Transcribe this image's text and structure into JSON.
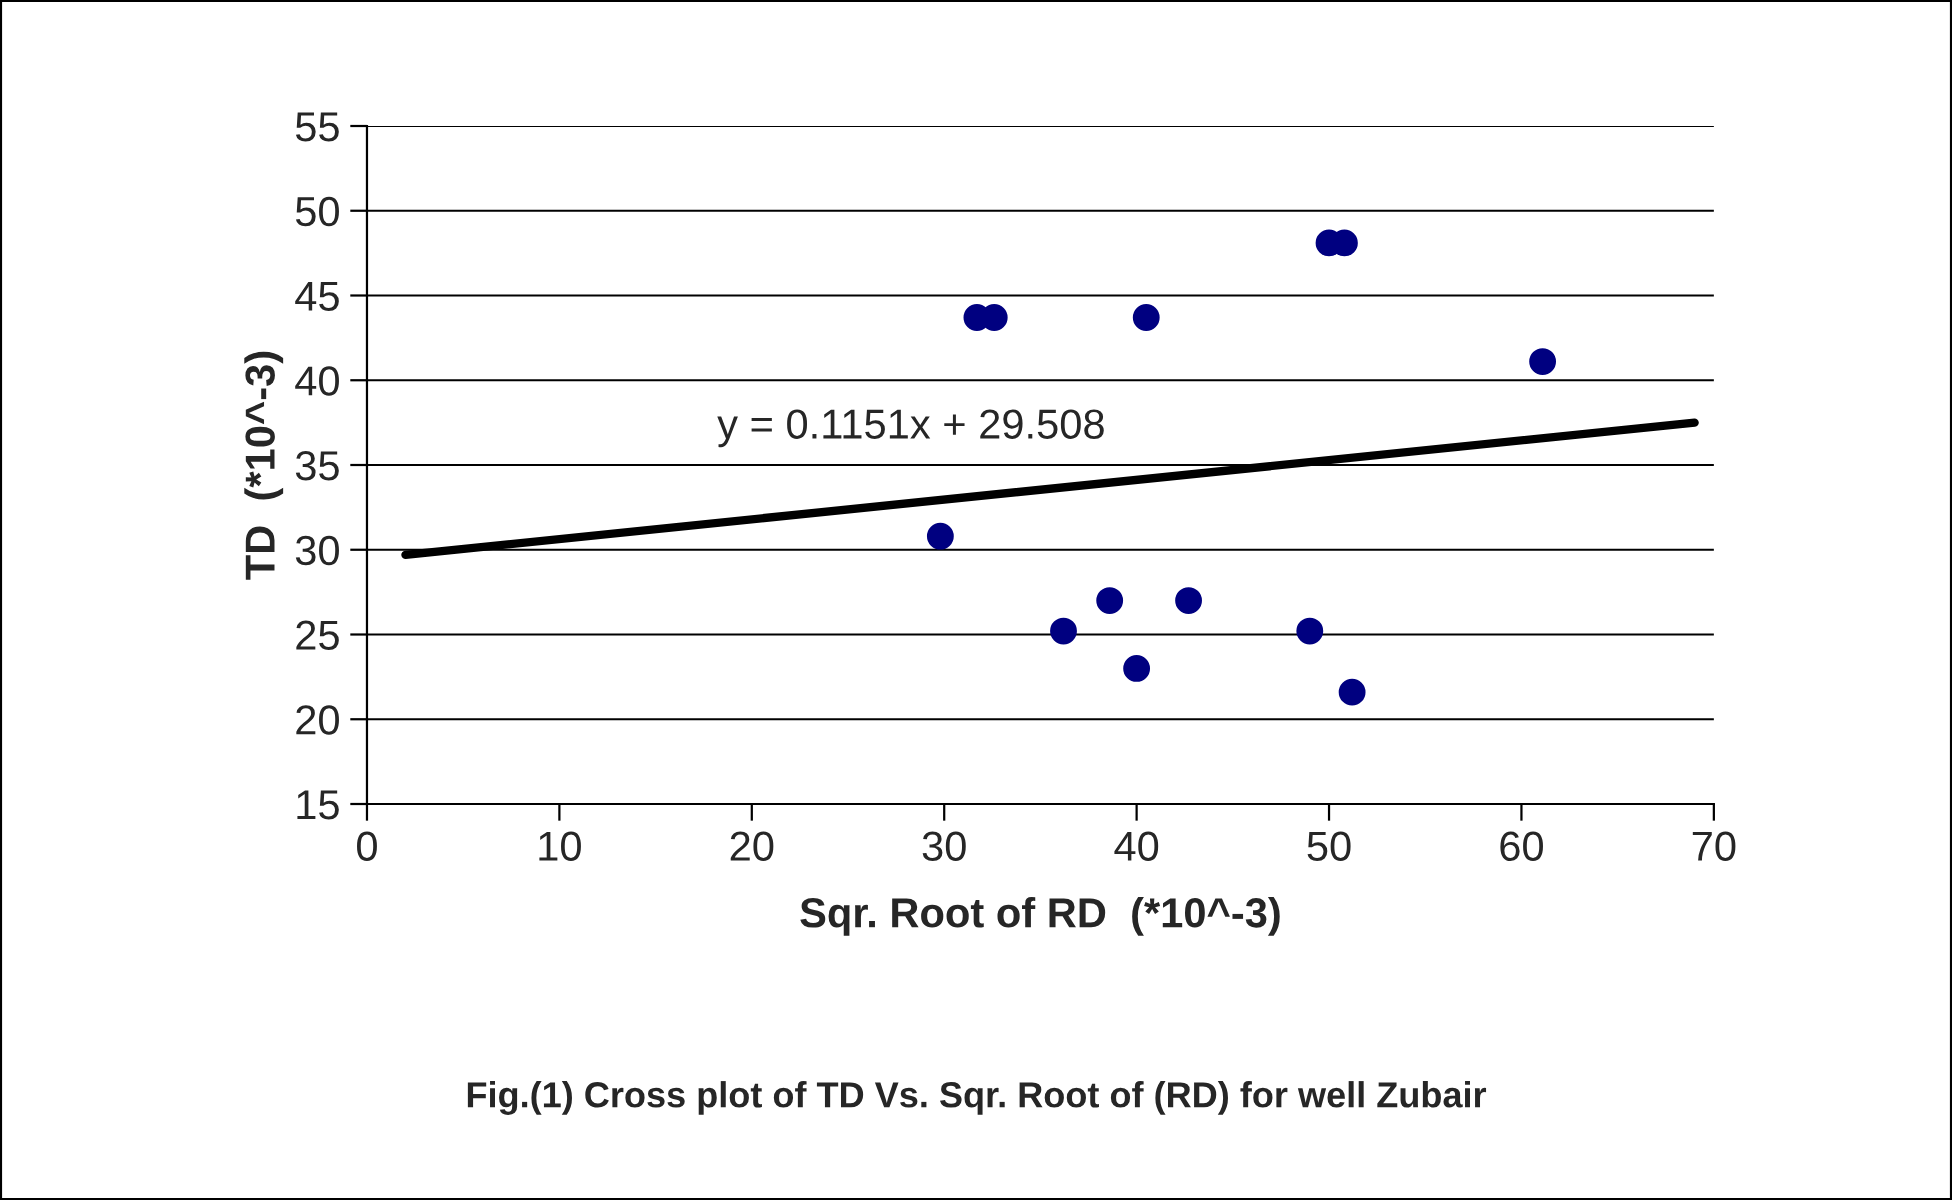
{
  "chart_data": {
    "type": "scatter",
    "xlabel": "Sqr. Root of RD  (*10^-3)",
    "ylabel": "TD  (*10^-3)",
    "annotations": [
      "y = 0.1151x + 29.508",
      "Fig.(1) Cross plot of TD Vs. Sqr. Root of (RD) for well Zubair"
    ],
    "series": [
      {
        "color": "#000080",
        "marker": "circle",
        "x": [
          29.8,
          31.7,
          32.6,
          36.2,
          38.6,
          40.0,
          40.5,
          42.7,
          49.0,
          50.0,
          50.8,
          51.2,
          61.1
        ],
        "values": [
          30.8,
          43.7,
          43.7,
          25.2,
          27.0,
          23.0,
          43.7,
          27.0,
          25.2,
          48.1,
          48.1,
          21.6,
          41.1
        ]
      },
      {
        "type": "line",
        "color": "#000000",
        "marker": "none",
        "line_style": "solid",
        "x": [
          2,
          69
        ],
        "values": [
          29.7,
          37.5
        ]
      }
    ],
    "xlim": [
      0,
      70
    ],
    "xticks": [
      0,
      10,
      20,
      30,
      40,
      50,
      60,
      70
    ],
    "ylim": [
      15,
      55
    ],
    "yticks": [
      15,
      20,
      25,
      30,
      35,
      40,
      45,
      50,
      55
    ],
    "grid": "y",
    "legend": false
  }
}
